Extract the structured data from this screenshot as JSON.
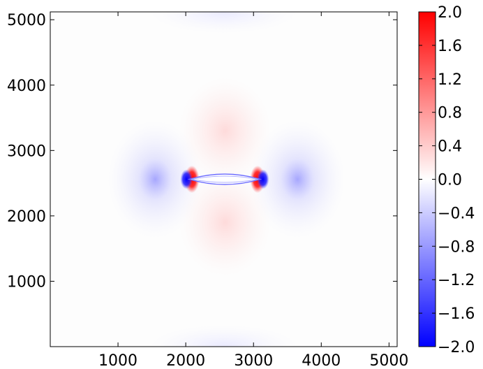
{
  "chart_data": {
    "type": "heatmap",
    "title": "",
    "xlabel": "",
    "ylabel": "",
    "xlim": [
      0,
      5120
    ],
    "ylim": [
      0,
      5120
    ],
    "x_ticks": [
      1000,
      2000,
      3000,
      4000,
      5000
    ],
    "y_ticks": [
      1000,
      2000,
      3000,
      4000,
      5000
    ],
    "x_tick_labels": [
      "1000",
      "2000",
      "3000",
      "4000",
      "5000"
    ],
    "y_tick_labels": [
      "1000",
      "2000",
      "3000",
      "4000",
      "5000"
    ],
    "grid": false,
    "colormap": "bwr",
    "colormap_colors": [
      "#0000ff",
      "#ffffff",
      "#ff0000"
    ],
    "colorbar": {
      "range": [
        -2.0,
        2.0
      ],
      "ticks": [
        2.0,
        1.6,
        1.2,
        0.8,
        0.4,
        0.0,
        -0.4,
        -0.8,
        -1.2,
        -1.6,
        -2.0
      ],
      "tick_labels": [
        "2.0",
        "1.6",
        "1.2",
        "0.8",
        "0.4",
        "0.0",
        "−0.4",
        "−0.8",
        "−1.2",
        "−1.6",
        "−2.0"
      ],
      "placement": "right"
    },
    "features": [
      {
        "kind": "crack",
        "x_start": 2050,
        "x_end": 3100,
        "y": 2560,
        "half_opening": 80
      },
      {
        "kind": "tip_lobe",
        "x": 2090,
        "y": 2560,
        "value": 2.0
      },
      {
        "kind": "tip_lobe",
        "x": 3060,
        "y": 2560,
        "value": 2.0
      },
      {
        "kind": "tip_lobe",
        "x": 2010,
        "y": 2560,
        "value": -2.0
      },
      {
        "kind": "tip_lobe",
        "x": 3140,
        "y": 2560,
        "value": -2.0
      },
      {
        "kind": "outer_lobe",
        "x": 1550,
        "y": 2560,
        "value": -0.3
      },
      {
        "kind": "outer_lobe",
        "x": 3650,
        "y": 2560,
        "value": -0.3
      },
      {
        "kind": "center_lobe",
        "x": 2580,
        "y": 3300,
        "value": 0.15
      },
      {
        "kind": "center_lobe",
        "x": 2580,
        "y": 1900,
        "value": 0.15
      },
      {
        "kind": "edge_lobe",
        "x": 2560,
        "y": 5120,
        "value": -0.05
      },
      {
        "kind": "edge_lobe",
        "x": 2560,
        "y": 0,
        "value": -0.05
      }
    ]
  }
}
